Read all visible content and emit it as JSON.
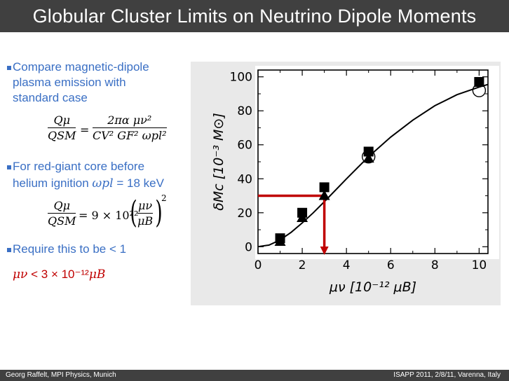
{
  "slide": {
    "title": "Globular Cluster Limits on Neutrino Dipole Moments",
    "footer_left": "Georg Raffelt, MPI Physics, Munich",
    "footer_right": "ISAPP 2011, 2/8/11, Varenna, Italy"
  },
  "bullets": {
    "b1_line1": "Compare magnetic-dipole",
    "b1_line2": "plasma emission with",
    "b1_line3": "standard case",
    "b2_line1": "For red-giant core before",
    "b2_line2": "helium ignition",
    "b2_value": "= 18 keV",
    "b3": "Require this to be  < 1",
    "result": "< 3 × 10⁻¹²"
  },
  "equations": {
    "eq1_num_left": "Qμ",
    "eq1_den_left": "QSM",
    "eq1_num_right": "2πα μν²",
    "eq1_den_right": "CV² GF² ωpl²",
    "eq2_num_left": "Qμ",
    "eq2_den_left": "QSM",
    "eq2_mid": "= 9 × 10²² ",
    "eq2_paren_num": "μν",
    "eq2_paren_den": "μB",
    "omega_pl": "ωpl",
    "mu_nu": "μν",
    "mu_B": "μB"
  },
  "chart_data": {
    "type": "scatter",
    "xlabel": "μν [10⁻¹² μB]",
    "ylabel": "δMc [10⁻³ M⊙]",
    "xlim": [
      0,
      10.4
    ],
    "ylim": [
      -4,
      104
    ],
    "xticks": [
      0,
      2,
      4,
      6,
      8,
      10
    ],
    "yticks": [
      0,
      20,
      40,
      60,
      80,
      100
    ],
    "series": [
      {
        "marker": "square",
        "x": [
          1,
          2,
          3,
          5,
          10
        ],
        "y": [
          5,
          20,
          35,
          56,
          97
        ]
      },
      {
        "marker": "triangle",
        "x": [
          1,
          2,
          3,
          5
        ],
        "y": [
          3,
          17,
          30,
          52
        ]
      },
      {
        "marker": "circle",
        "x": [
          5,
          10
        ],
        "y": [
          53,
          92
        ]
      }
    ],
    "curve": {
      "x": [
        0,
        0.5,
        1,
        1.5,
        2,
        2.5,
        3,
        4,
        5,
        6,
        7,
        8,
        9,
        10,
        10.4
      ],
      "y": [
        0,
        1,
        4,
        8.5,
        14,
        20,
        26.5,
        40,
        53,
        64.5,
        74.5,
        83,
        89.5,
        94,
        95.5
      ]
    },
    "limit_marker": {
      "x": 3,
      "y": 30
    },
    "colors": {
      "limit_arrow": "#c00000",
      "points": "#000000",
      "curve": "#000000"
    }
  }
}
